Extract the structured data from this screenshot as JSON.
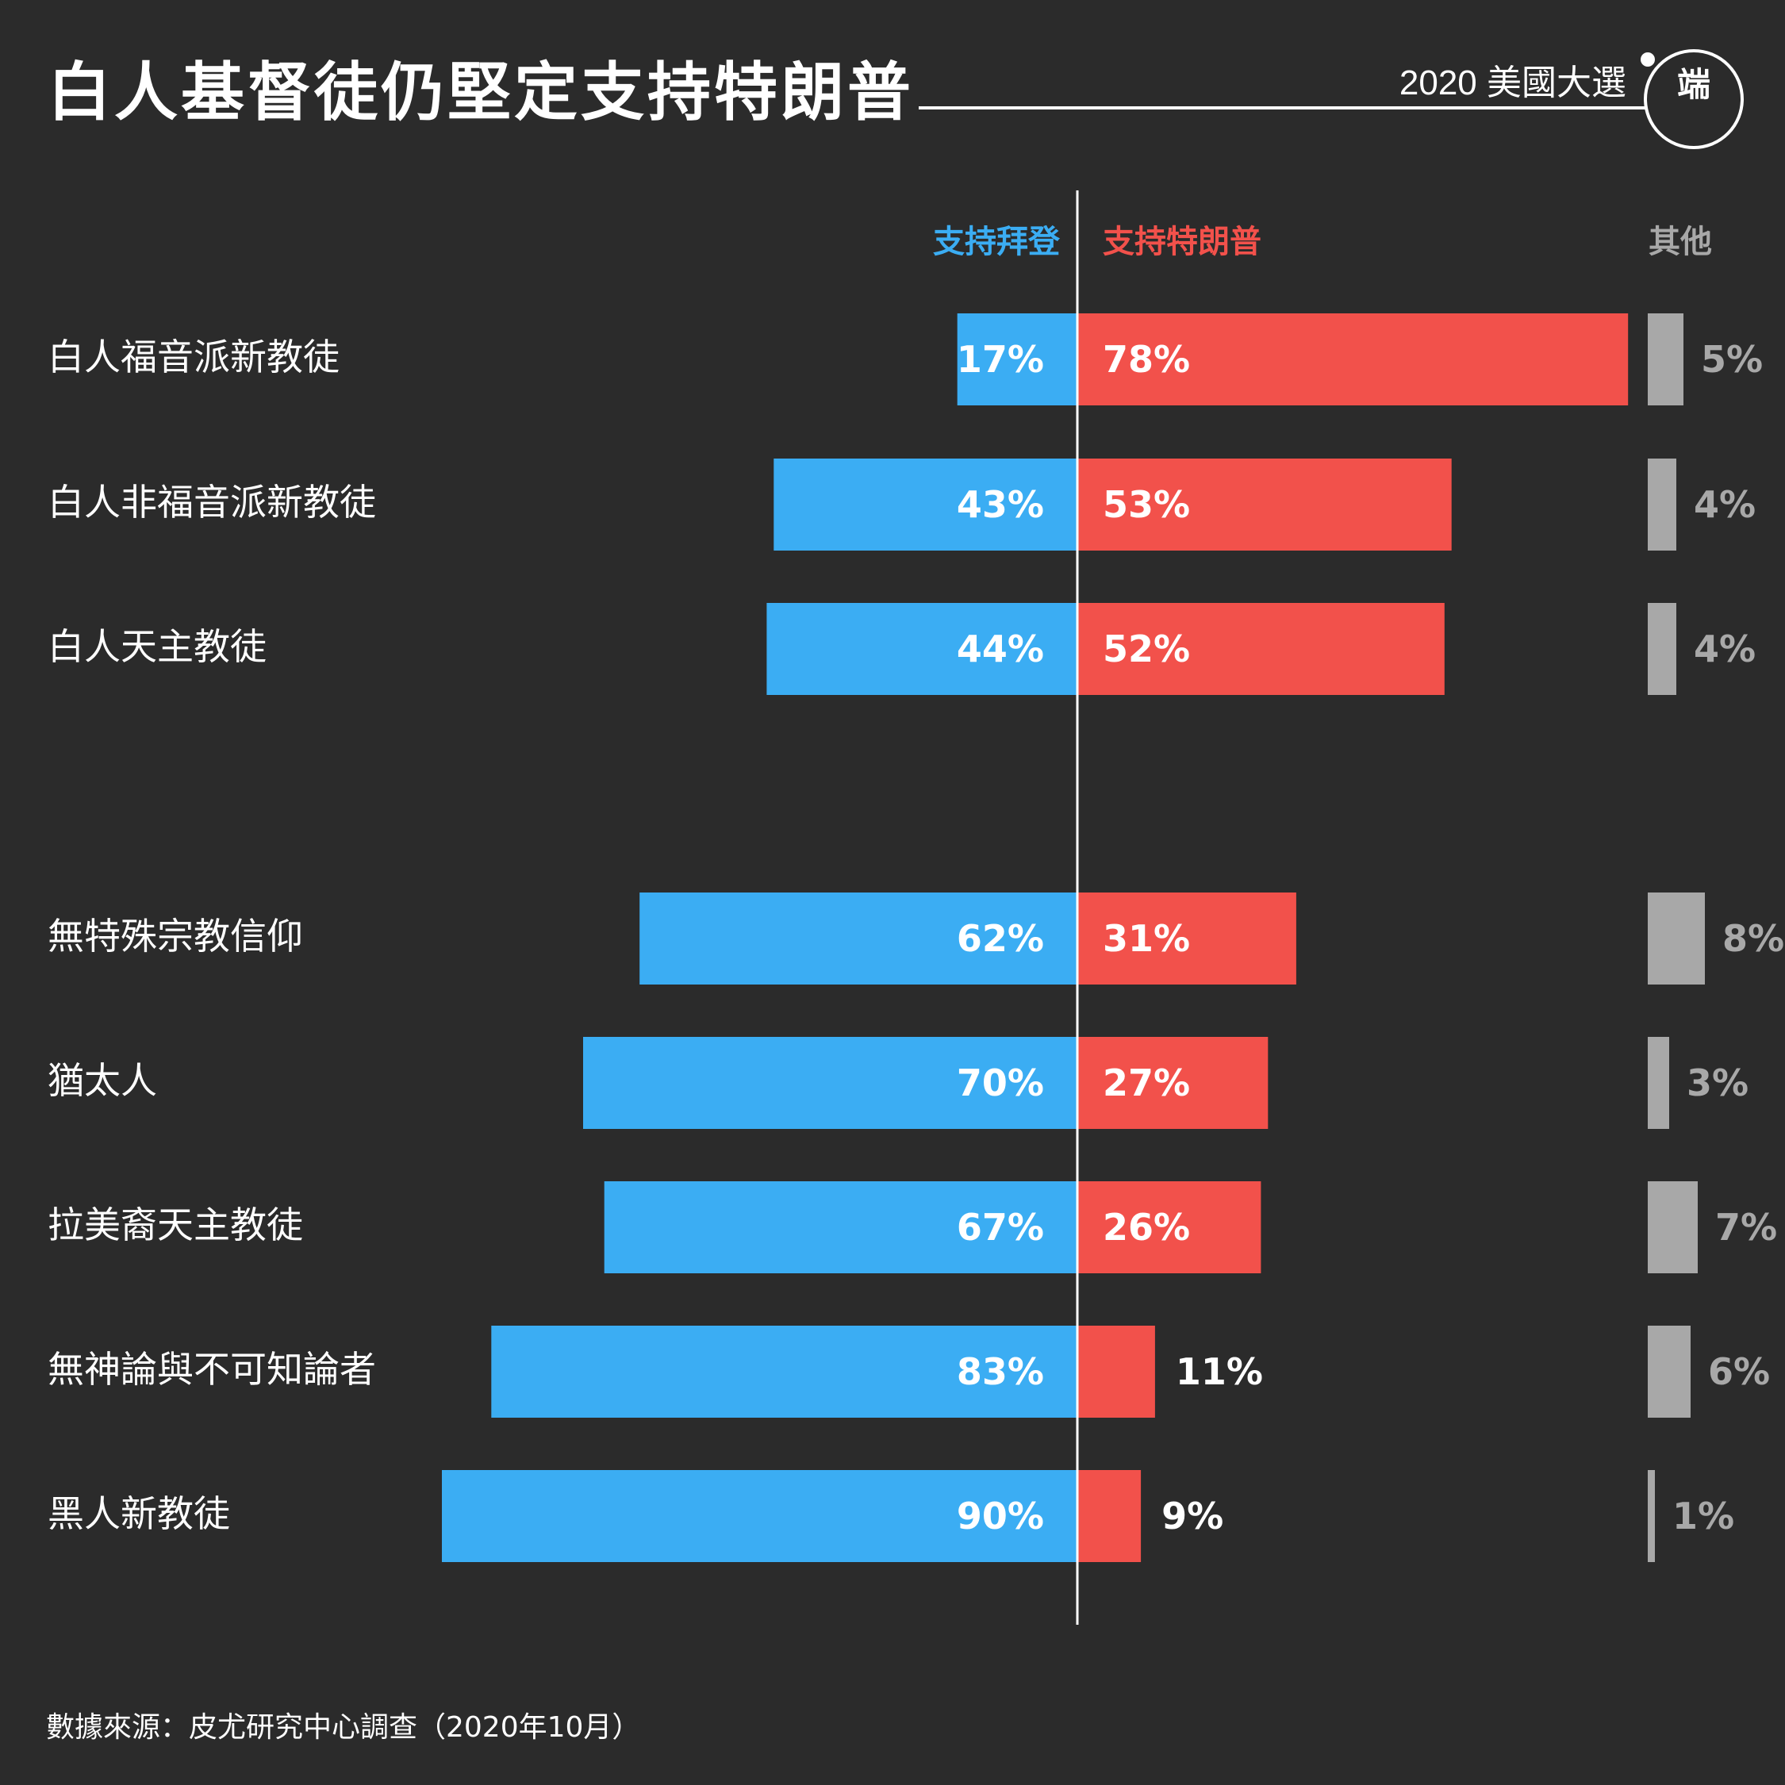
{
  "header": {
    "title": "白人基督徒仍堅定支持特朗普",
    "series_tag": "2020 美國大選",
    "logo_text": "端"
  },
  "footer": {
    "source": "數據來源：皮尤研究中心調查（2020年10月）"
  },
  "colors": {
    "background": "#2b2b2b",
    "biden": "#3badf3",
    "trump": "#f2514b",
    "other": "#a8a8a8",
    "text": "#ffffff"
  },
  "chart_data": {
    "type": "bar",
    "orientation": "horizontal-diverging",
    "title": "白人基督徒仍堅定支持特朗普",
    "columns": [
      "支持拜登",
      "支持特朗普",
      "其他"
    ],
    "categories": [
      "白人福音派新教徒",
      "白人非福音派新教徒",
      "白人天主教徒",
      "無特殊宗教信仰",
      "猶太人",
      "拉美裔天主教徒",
      "無神論與不可知論者",
      "黑人新教徒"
    ],
    "series": [
      {
        "name": "支持拜登",
        "values": [
          17,
          43,
          44,
          62,
          70,
          67,
          83,
          90
        ],
        "labels": [
          "17%",
          "43%",
          "44%",
          "62%",
          "70%",
          "67%",
          "83%",
          "90%"
        ]
      },
      {
        "name": "支持特朗普",
        "values": [
          78,
          53,
          52,
          31,
          27,
          26,
          11,
          9
        ],
        "labels": [
          "78%",
          "53%",
          "52%",
          "31%",
          "27%",
          "26%",
          "11%",
          "9%"
        ]
      },
      {
        "name": "其他",
        "values": [
          5,
          4,
          4,
          8,
          3,
          7,
          6,
          1
        ],
        "labels": [
          "5%",
          "4%",
          "4%",
          "8%",
          "3%",
          "7%",
          "6%",
          "1%"
        ]
      }
    ],
    "unit": "%",
    "grid": false,
    "legend": "top"
  }
}
